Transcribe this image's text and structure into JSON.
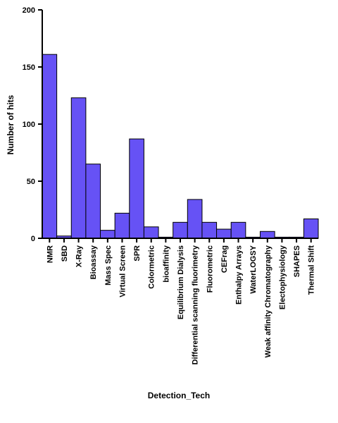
{
  "chart_data": {
    "type": "bar",
    "title": "",
    "xlabel": "Detection_Tech",
    "ylabel": "Number of hits",
    "ylim": [
      0,
      200
    ],
    "yticks": [
      0,
      50,
      100,
      150,
      200
    ],
    "grid": false,
    "legend": "none",
    "bar_color": "#6652f5",
    "bar_stroke": "#000000",
    "categories": [
      "NMR",
      "SBD",
      "X-Ray",
      "Bioassay",
      "Mass Spec",
      "Virtual Screen",
      "SPR",
      "Colormetric",
      "bioaffinity",
      "Equilibrium Dialysis",
      "Differential scanning fluorimetry",
      "Fluorometric",
      "CEFrag",
      "Enthalpy Arrays",
      "WaterLOGSY",
      "Weak affinity Chromatography",
      "Electophysiology",
      "SHAPES",
      "Thermal Shift"
    ],
    "values": [
      161,
      2,
      123,
      65,
      7,
      22,
      87,
      10,
      1,
      14,
      34,
      14,
      8,
      14,
      1,
      6,
      1,
      1,
      17
    ]
  }
}
